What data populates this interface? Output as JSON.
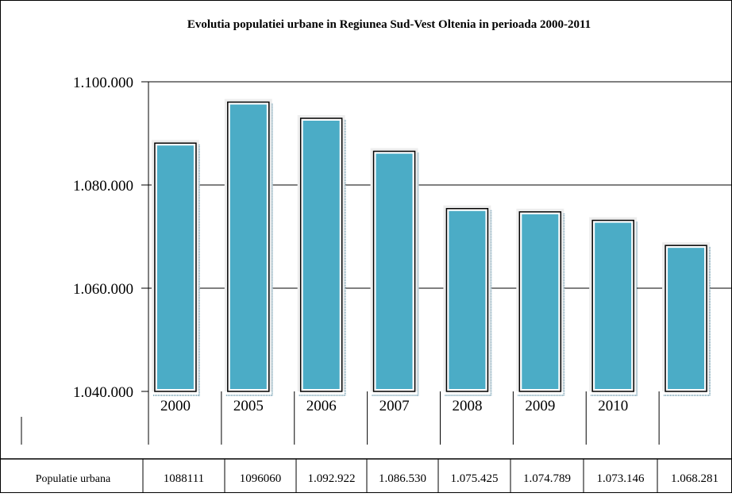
{
  "chart_data": {
    "type": "bar",
    "title": "Evolutia populatiei urbane in Regiunea Sud-Vest Oltenia in perioada 2000-2011",
    "xlabel": "",
    "ylabel": "",
    "categories": [
      "2000",
      "2005",
      "2006",
      "2007",
      "2008",
      "2009",
      "2010",
      ""
    ],
    "series": [
      {
        "name": "Populatie urbana",
        "values": [
          1088111,
          1096060,
          1092922,
          1086530,
          1075425,
          1074789,
          1073146,
          1068281
        ]
      }
    ],
    "ylim": [
      1040000,
      1100000
    ],
    "yticks": [
      1040000,
      1060000,
      1080000,
      1100000
    ],
    "ytick_labels": [
      "1.040.000",
      "1.060.000",
      "1.080.000",
      "1.100.000"
    ],
    "grid": true,
    "table": {
      "row_label": "Populatie urbana",
      "cells": [
        "1088111",
        "1096060",
        "1.092.922",
        "1.086.530",
        "1.075.425",
        "1.074.789",
        "1.073.146",
        "1.068.281"
      ]
    },
    "colors": {
      "bar": "#4bacc6",
      "bar_border": "#000000",
      "bar_glow": "#eeeeee",
      "bar_shadow": "#7fa6b8",
      "grid": "#000000",
      "background": "#ffffff"
    }
  }
}
